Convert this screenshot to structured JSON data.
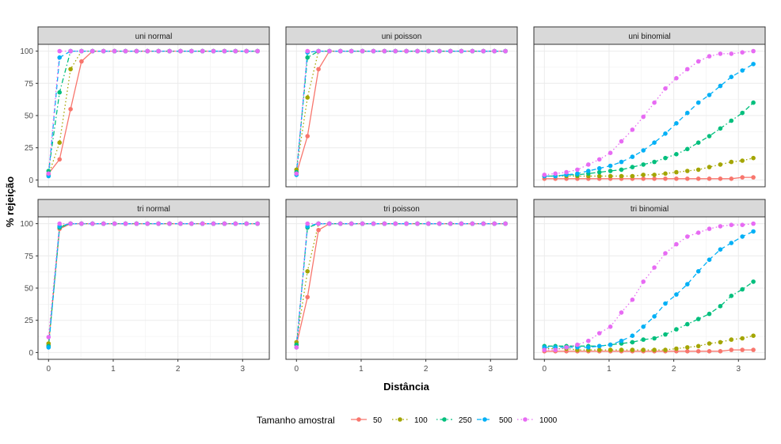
{
  "chart_data": {
    "type": "line",
    "layout": "facet-grid 2x3",
    "xlabel": "Distância",
    "ylabel": "% rejeição",
    "xlim": [
      0,
      3.25
    ],
    "ylim": [
      0,
      100
    ],
    "x_ticks": [
      0,
      1,
      2,
      3
    ],
    "y_ticks": [
      0,
      25,
      50,
      75,
      100
    ],
    "grid": true,
    "legend_position": "bottom",
    "legend": {
      "title": "Tamanho amostral",
      "entries": [
        {
          "name": "50",
          "color": "#F8766D",
          "dash": "solid"
        },
        {
          "name": "100",
          "color": "#A3A500",
          "dash": "dotted"
        },
        {
          "name": "250",
          "color": "#00BF7D",
          "dash": "dotdash"
        },
        {
          "name": "500",
          "color": "#00B0F6",
          "dash": "dashed"
        },
        {
          "name": "1000",
          "color": "#E76BF3",
          "dash": "dotted"
        }
      ]
    },
    "x": [
      0,
      0.17,
      0.34,
      0.51,
      0.68,
      0.85,
      1.02,
      1.19,
      1.36,
      1.53,
      1.7,
      1.87,
      2.04,
      2.21,
      2.38,
      2.55,
      2.72,
      2.89,
      3.06,
      3.23
    ],
    "panels": [
      {
        "title": "uni normal",
        "series": [
          {
            "name": "50",
            "values": [
              5,
              16,
              55,
              92,
              100,
              100,
              100,
              100,
              100,
              100,
              100,
              100,
              100,
              100,
              100,
              100,
              100,
              100,
              100,
              100
            ]
          },
          {
            "name": "100",
            "values": [
              4,
              29,
              86,
              100,
              100,
              100,
              100,
              100,
              100,
              100,
              100,
              100,
              100,
              100,
              100,
              100,
              100,
              100,
              100,
              100
            ]
          },
          {
            "name": "250",
            "values": [
              7,
              68,
              100,
              100,
              100,
              100,
              100,
              100,
              100,
              100,
              100,
              100,
              100,
              100,
              100,
              100,
              100,
              100,
              100,
              100
            ]
          },
          {
            "name": "500",
            "values": [
              3,
              95,
              100,
              100,
              100,
              100,
              100,
              100,
              100,
              100,
              100,
              100,
              100,
              100,
              100,
              100,
              100,
              100,
              100,
              100
            ]
          },
          {
            "name": "1000",
            "values": [
              5,
              100,
              100,
              100,
              100,
              100,
              100,
              100,
              100,
              100,
              100,
              100,
              100,
              100,
              100,
              100,
              100,
              100,
              100,
              100
            ]
          }
        ]
      },
      {
        "title": "uni poisson",
        "series": [
          {
            "name": "50",
            "values": [
              5,
              34,
              86,
              100,
              100,
              100,
              100,
              100,
              100,
              100,
              100,
              100,
              100,
              100,
              100,
              100,
              100,
              100,
              100,
              100
            ]
          },
          {
            "name": "100",
            "values": [
              8,
              64,
              100,
              100,
              100,
              100,
              100,
              100,
              100,
              100,
              100,
              100,
              100,
              100,
              100,
              100,
              100,
              100,
              100,
              100
            ]
          },
          {
            "name": "250",
            "values": [
              6,
              95,
              100,
              100,
              100,
              100,
              100,
              100,
              100,
              100,
              100,
              100,
              100,
              100,
              100,
              100,
              100,
              100,
              100,
              100
            ]
          },
          {
            "name": "500",
            "values": [
              4,
              99,
              100,
              100,
              100,
              100,
              100,
              100,
              100,
              100,
              100,
              100,
              100,
              100,
              100,
              100,
              100,
              100,
              100,
              100
            ]
          },
          {
            "name": "1000",
            "values": [
              5,
              100,
              100,
              100,
              100,
              100,
              100,
              100,
              100,
              100,
              100,
              100,
              100,
              100,
              100,
              100,
              100,
              100,
              100,
              100
            ]
          }
        ]
      },
      {
        "title": "uni binomial",
        "series": [
          {
            "name": "50",
            "values": [
              1,
              1,
              1,
              1,
              1,
              1,
              1,
              1,
              1,
              1,
              1,
              1,
              1,
              1,
              1,
              1,
              1,
              1,
              2,
              2
            ]
          },
          {
            "name": "100",
            "values": [
              3,
              3,
              3,
              3,
              3,
              3,
              3,
              3,
              3,
              4,
              4,
              5,
              6,
              7,
              8,
              10,
              12,
              14,
              15,
              17
            ]
          },
          {
            "name": "250",
            "values": [
              3,
              3,
              4,
              4,
              5,
              6,
              7,
              8,
              10,
              12,
              14,
              17,
              20,
              24,
              29,
              34,
              40,
              46,
              52,
              60
            ]
          },
          {
            "name": "500",
            "values": [
              3,
              3,
              4,
              5,
              7,
              9,
              11,
              14,
              18,
              23,
              29,
              36,
              44,
              52,
              60,
              66,
              73,
              80,
              85,
              90
            ]
          },
          {
            "name": "1000",
            "values": [
              4,
              5,
              6,
              8,
              12,
              16,
              21,
              30,
              39,
              49,
              60,
              71,
              79,
              86,
              92,
              96,
              98,
              98,
              99,
              100
            ]
          }
        ]
      },
      {
        "title": "tri normal",
        "series": [
          {
            "name": "50",
            "values": [
              6,
              96,
              100,
              100,
              100,
              100,
              100,
              100,
              100,
              100,
              100,
              100,
              100,
              100,
              100,
              100,
              100,
              100,
              100,
              100
            ]
          },
          {
            "name": "100",
            "values": [
              7,
              98,
              100,
              100,
              100,
              100,
              100,
              100,
              100,
              100,
              100,
              100,
              100,
              100,
              100,
              100,
              100,
              100,
              100,
              100
            ]
          },
          {
            "name": "250",
            "values": [
              5,
              97,
              100,
              100,
              100,
              100,
              100,
              100,
              100,
              100,
              100,
              100,
              100,
              100,
              100,
              100,
              100,
              100,
              100,
              100
            ]
          },
          {
            "name": "500",
            "values": [
              4,
              98,
              100,
              100,
              100,
              100,
              100,
              100,
              100,
              100,
              100,
              100,
              100,
              100,
              100,
              100,
              100,
              100,
              100,
              100
            ]
          },
          {
            "name": "1000",
            "values": [
              12,
              100,
              100,
              100,
              100,
              100,
              100,
              100,
              100,
              100,
              100,
              100,
              100,
              100,
              100,
              100,
              100,
              100,
              100,
              100
            ]
          }
        ]
      },
      {
        "title": "tri poisson",
        "series": [
          {
            "name": "50",
            "values": [
              6,
              43,
              95,
              100,
              100,
              100,
              100,
              100,
              100,
              100,
              100,
              100,
              100,
              100,
              100,
              100,
              100,
              100,
              100,
              100
            ]
          },
          {
            "name": "100",
            "values": [
              8,
              63,
              100,
              100,
              100,
              100,
              100,
              100,
              100,
              100,
              100,
              100,
              100,
              100,
              100,
              100,
              100,
              100,
              100,
              100
            ]
          },
          {
            "name": "250",
            "values": [
              6,
              97,
              100,
              100,
              100,
              100,
              100,
              100,
              100,
              100,
              100,
              100,
              100,
              100,
              100,
              100,
              100,
              100,
              100,
              100
            ]
          },
          {
            "name": "500",
            "values": [
              4,
              98,
              100,
              100,
              100,
              100,
              100,
              100,
              100,
              100,
              100,
              100,
              100,
              100,
              100,
              100,
              100,
              100,
              100,
              100
            ]
          },
          {
            "name": "1000",
            "values": [
              4,
              100,
              100,
              100,
              100,
              100,
              100,
              100,
              100,
              100,
              100,
              100,
              100,
              100,
              100,
              100,
              100,
              100,
              100,
              100
            ]
          }
        ]
      },
      {
        "title": "tri binomial",
        "series": [
          {
            "name": "50",
            "values": [
              1,
              1,
              1,
              1,
              1,
              1,
              1,
              1,
              1,
              1,
              1,
              1,
              1,
              1,
              1,
              1,
              1,
              2,
              2,
              2
            ]
          },
          {
            "name": "100",
            "values": [
              3,
              3,
              3,
              2,
              2,
              2,
              2,
              2,
              2,
              2,
              2,
              2,
              3,
              4,
              5,
              7,
              8,
              10,
              11,
              13
            ]
          },
          {
            "name": "250",
            "values": [
              5,
              5,
              5,
              5,
              5,
              5,
              6,
              7,
              8,
              10,
              11,
              14,
              18,
              22,
              26,
              30,
              36,
              44,
              49,
              55
            ]
          },
          {
            "name": "500",
            "values": [
              4,
              4,
              4,
              4,
              4,
              5,
              6,
              9,
              13,
              20,
              28,
              38,
              45,
              53,
              63,
              72,
              80,
              85,
              90,
              94
            ]
          },
          {
            "name": "1000",
            "values": [
              2,
              2,
              4,
              6,
              9,
              15,
              20,
              31,
              41,
              55,
              66,
              77,
              84,
              90,
              93,
              96,
              98,
              99,
              99,
              100
            ]
          }
        ]
      }
    ]
  }
}
